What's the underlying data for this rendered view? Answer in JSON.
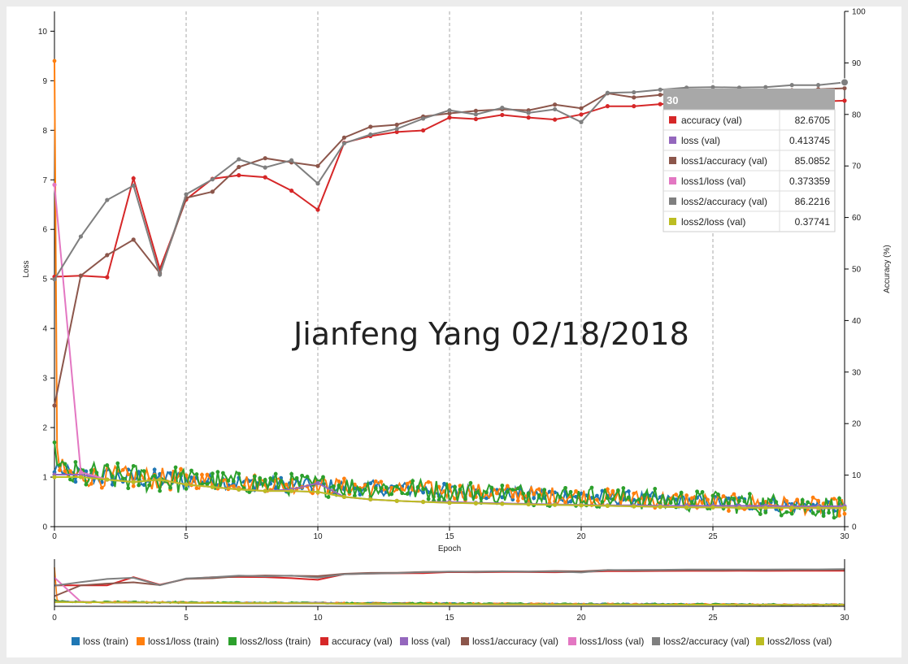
{
  "watermark": "Jianfeng Yang 02/18/2018",
  "chart_data": {
    "type": "line",
    "xlabel": "Epoch",
    "ylabel_left": "Loss",
    "ylabel_right": "Accuracy (%)",
    "xlim": [
      0,
      30
    ],
    "ylim_left": [
      0,
      10.4
    ],
    "ylim_right": [
      0,
      100
    ],
    "x_ticks": [
      "0",
      "5",
      "10",
      "15",
      "20",
      "25",
      "30"
    ],
    "y_ticks_left": [
      "0",
      "1",
      "2",
      "3",
      "4",
      "5",
      "6",
      "7",
      "8",
      "9",
      "10"
    ],
    "y_ticks_right": [
      "0",
      "10",
      "20",
      "30",
      "40",
      "50",
      "60",
      "70",
      "80",
      "90",
      "100"
    ],
    "grid": "vertical dashed",
    "train_series": [
      {
        "name": "loss (train)",
        "color": "#1f77b4",
        "axis": "left",
        "start": 1.1
      },
      {
        "name": "loss1/loss (train)",
        "color": "#ff7f0e",
        "axis": "left",
        "start": 9.4
      },
      {
        "name": "loss2/loss (train)",
        "color": "#2ca02c",
        "axis": "left",
        "start": 1.7
      }
    ],
    "val_series": [
      {
        "name": "accuracy (val)",
        "color": "#d62728",
        "axis": "right",
        "values": [
          48.5,
          48.7,
          48.4,
          67.6,
          50.0,
          63.5,
          67.5,
          68.2,
          67.8,
          65.2,
          61.5,
          74.5,
          75.8,
          76.6,
          76.9,
          79.4,
          79.1,
          79.9,
          79.4,
          79.0,
          80.0,
          81.6,
          81.6,
          82.0,
          82.2,
          82.2,
          82.4,
          82.3,
          82.5,
          82.5,
          82.6705
        ]
      },
      {
        "name": "loss (val)",
        "color": "#9467bd",
        "axis": "left",
        "values": [
          1.05,
          1.05,
          0.95,
          0.9,
          0.95,
          0.85,
          0.8,
          0.75,
          0.72,
          0.75,
          0.88,
          0.6,
          0.55,
          0.52,
          0.5,
          0.5,
          0.48,
          0.47,
          0.46,
          0.45,
          0.44,
          0.43,
          0.43,
          0.42,
          0.42,
          0.42,
          0.42,
          0.42,
          0.41,
          0.41,
          0.413745
        ]
      },
      {
        "name": "loss1/accuracy (val)",
        "color": "#8c564b",
        "axis": "right",
        "values": [
          23.5,
          48.7,
          52.7,
          55.7,
          49.2,
          63.8,
          65.0,
          69.8,
          71.5,
          70.7,
          70.0,
          75.5,
          77.6,
          78.0,
          79.6,
          80.2,
          80.7,
          81.0,
          80.8,
          81.9,
          81.2,
          84.1,
          83.3,
          83.8,
          84.4,
          84.0,
          84.5,
          84.6,
          84.7,
          84.9,
          85.0852
        ]
      },
      {
        "name": "loss1/loss (val)",
        "color": "#e377c2",
        "axis": "left",
        "values": [
          6.9,
          1.1,
          0.95,
          0.9,
          0.95,
          0.85,
          0.8,
          0.75,
          0.72,
          0.72,
          0.7,
          0.6,
          0.55,
          0.52,
          0.5,
          0.48,
          0.47,
          0.46,
          0.45,
          0.44,
          0.43,
          0.42,
          0.41,
          0.4,
          0.39,
          0.39,
          0.38,
          0.38,
          0.38,
          0.37,
          0.373359
        ]
      },
      {
        "name": "loss2/accuracy (val)",
        "color": "#7f7f7f",
        "axis": "right",
        "values": [
          48.0,
          56.3,
          63.4,
          66.2,
          48.9,
          64.5,
          67.4,
          71.3,
          69.7,
          71.1,
          66.6,
          74.4,
          76.1,
          77.2,
          79.2,
          80.8,
          80.0,
          81.3,
          80.3,
          81.0,
          78.5,
          84.2,
          84.3,
          84.8,
          85.2,
          85.3,
          85.2,
          85.3,
          85.7,
          85.7,
          86.2216
        ]
      },
      {
        "name": "loss2/loss (val)",
        "color": "#bcbd22",
        "axis": "left",
        "values": [
          1.0,
          1.0,
          0.95,
          0.9,
          0.95,
          0.85,
          0.8,
          0.75,
          0.72,
          0.72,
          0.7,
          0.6,
          0.55,
          0.52,
          0.5,
          0.48,
          0.47,
          0.46,
          0.45,
          0.44,
          0.43,
          0.42,
          0.41,
          0.4,
          0.39,
          0.39,
          0.38,
          0.38,
          0.38,
          0.38,
          0.37741
        ]
      }
    ],
    "tooltip": {
      "epoch": "30",
      "rows": [
        {
          "name": "accuracy (val)",
          "value": "82.6705",
          "color": "#d62728"
        },
        {
          "name": "loss (val)",
          "value": "0.413745",
          "color": "#9467bd"
        },
        {
          "name": "loss1/accuracy (val)",
          "value": "85.0852",
          "color": "#8c564b"
        },
        {
          "name": "loss1/loss (val)",
          "value": "0.373359",
          "color": "#e377c2"
        },
        {
          "name": "loss2/accuracy (val)",
          "value": "86.2216",
          "color": "#7f7f7f"
        },
        {
          "name": "loss2/loss (val)",
          "value": "0.37741",
          "color": "#bcbd22"
        }
      ]
    },
    "legend": [
      {
        "name": "loss (train)",
        "color": "#1f77b4"
      },
      {
        "name": "loss1/loss (train)",
        "color": "#ff7f0e"
      },
      {
        "name": "loss2/loss (train)",
        "color": "#2ca02c"
      },
      {
        "name": "accuracy (val)",
        "color": "#d62728"
      },
      {
        "name": "loss (val)",
        "color": "#9467bd"
      },
      {
        "name": "loss1/accuracy (val)",
        "color": "#8c564b"
      },
      {
        "name": "loss1/loss (val)",
        "color": "#e377c2"
      },
      {
        "name": "loss2/accuracy (val)",
        "color": "#7f7f7f"
      },
      {
        "name": "loss2/loss (val)",
        "color": "#bcbd22"
      }
    ],
    "legend_position": "bottom"
  }
}
